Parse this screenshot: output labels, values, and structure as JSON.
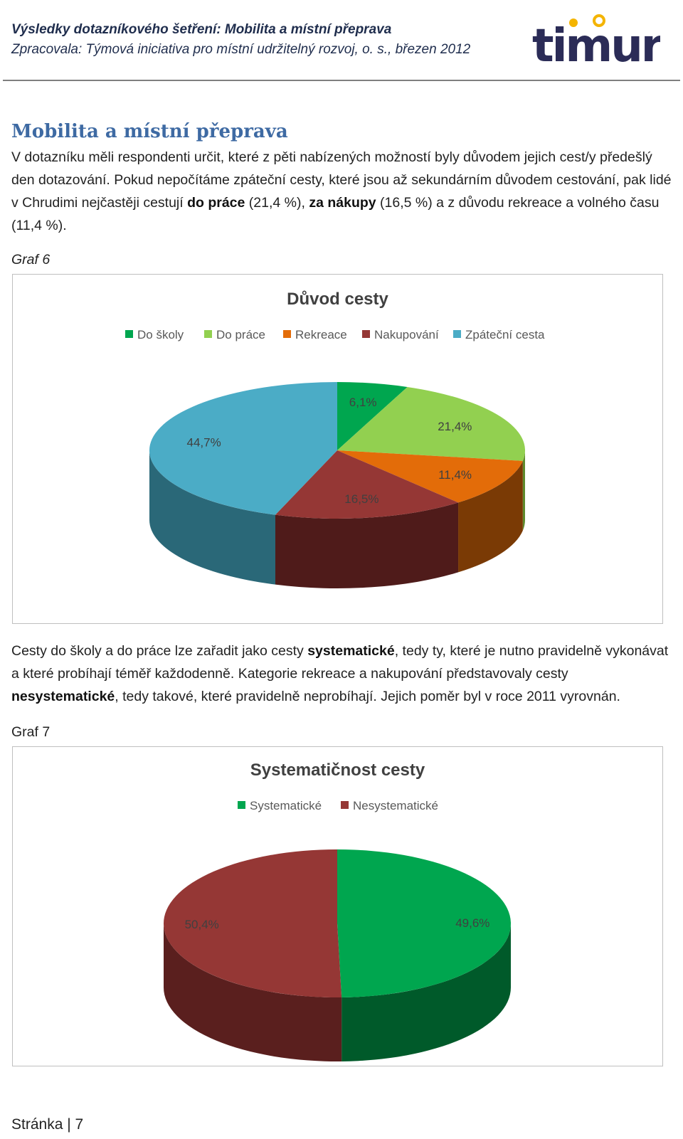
{
  "header": {
    "line1": "Výsledky dotazníkového šetření: Mobilita a místní přeprava",
    "line2": "Zpracovala: Týmová iniciativa pro místní udržitelný rozvoj, o. s., březen 2012",
    "logo_text": "timur"
  },
  "section": {
    "title": "Mobilita a místní přeprava",
    "para1_a": "V dotazníku měli respondenti určit, které z pěti nabízených možností byly důvodem jejich cest/y předešlý den dotazování. Pokud nepočítáme zpáteční cesty, které jsou až sekundárním důvodem cestování, pak lidé v Chrudimi nejčastěji cestují ",
    "para1_b1": "do práce",
    "para1_c": " (21,4 %), ",
    "para1_b2": "za nákupy",
    "para1_d": " (16,5 %) a z důvodu rekreace a volného času (11,4 %).",
    "graf6_caption": "Graf 6",
    "para2_a": "Cesty do školy a do práce lze zařadit jako cesty ",
    "para2_b1": "systematické",
    "para2_c": ", tedy ty, které je nutno pravidelně vykonávat a které probíhají téměř každodenně. Kategorie rekreace a nakupování představovaly cesty ",
    "para2_b2": "nesystematické",
    "para2_d": ", tedy takové, které pravidelně neprobíhají. Jejich poměr byl v roce 2011 vyrovnán.",
    "graf7_caption": "Graf 7"
  },
  "chart_data": [
    {
      "type": "pie",
      "title": "Důvod cesty",
      "legend_position": "top",
      "categories": [
        "Do školy",
        "Do práce",
        "Rekreace",
        "Nakupování",
        "Zpáteční cesta"
      ],
      "values": [
        6.1,
        21.4,
        11.4,
        16.5,
        44.7
      ],
      "labels": [
        "6,1%",
        "21,4%",
        "11,4%",
        "16,5%",
        "44,7%"
      ],
      "colors": [
        "#00a64f",
        "#92d050",
        "#e36c09",
        "#953735",
        "#4bacc6"
      ],
      "dark_colors": [
        "#006b33",
        "#5e8a2c",
        "#7a3a05",
        "#4f1b1a",
        "#2a6878"
      ]
    },
    {
      "type": "pie",
      "title": "Systematičnost cesty",
      "legend_position": "top",
      "categories": [
        "Systematické",
        "Nesystematické"
      ],
      "values": [
        49.6,
        50.4
      ],
      "labels": [
        "49,6%",
        "50,4%"
      ],
      "colors": [
        "#00a64f",
        "#953735"
      ],
      "dark_colors": [
        "#005a2a",
        "#5a1f1e"
      ]
    }
  ],
  "footer": {
    "page_label": "Stránka | 7"
  }
}
